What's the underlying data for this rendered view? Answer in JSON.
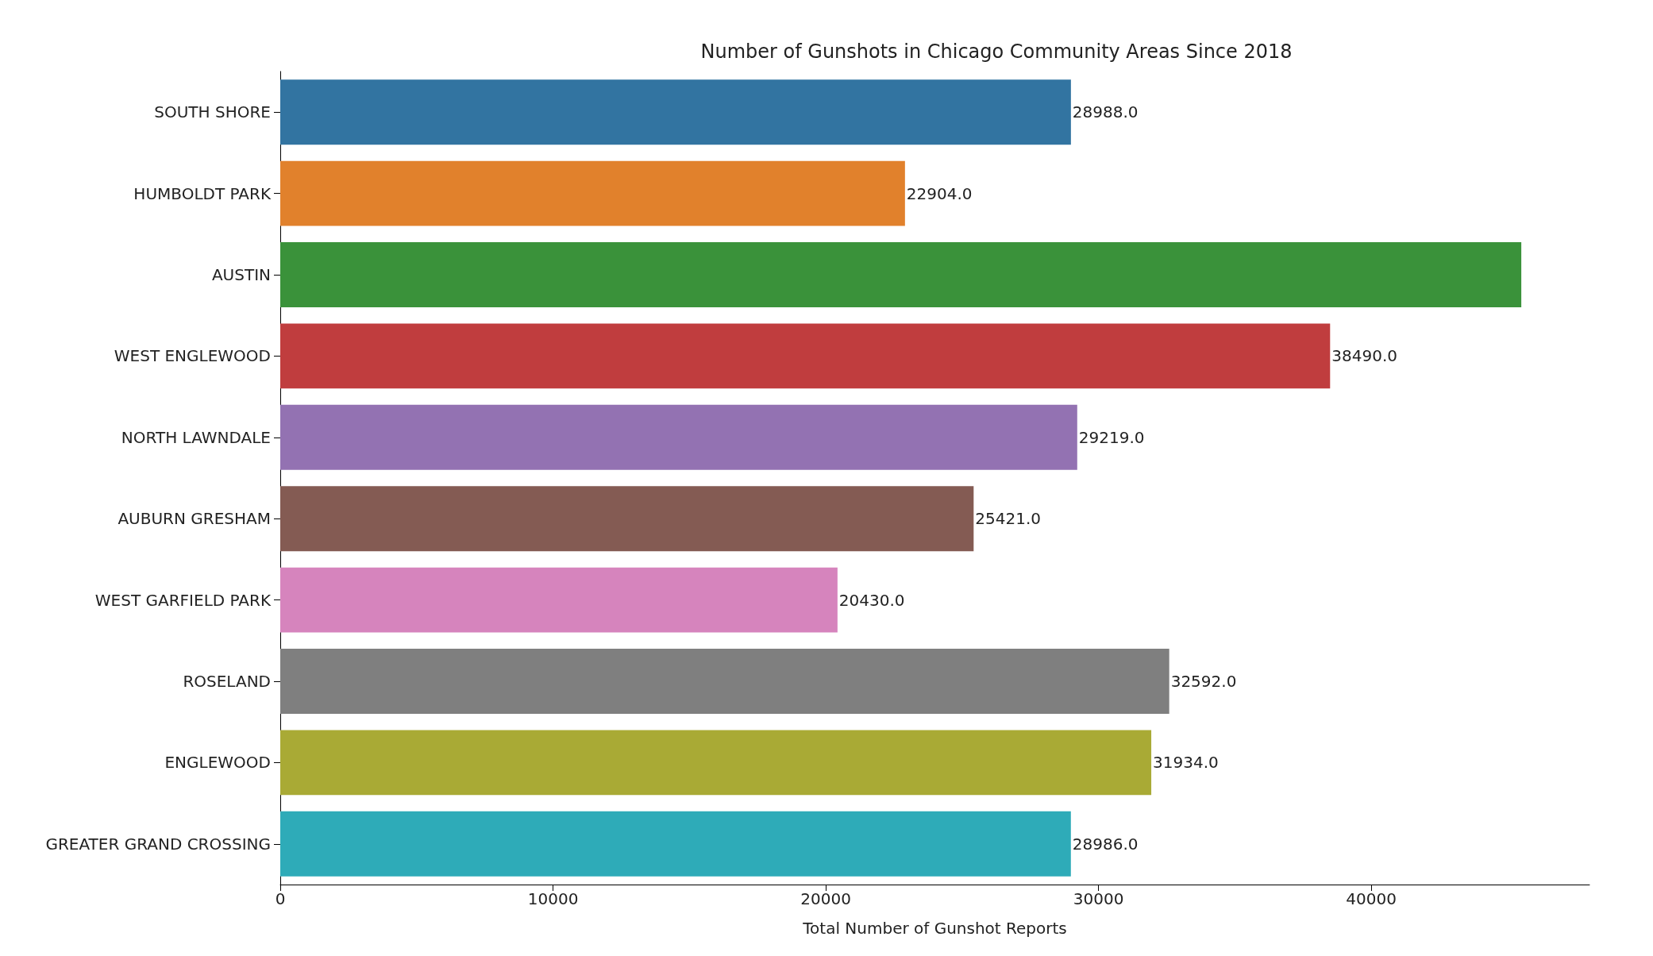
{
  "chart_data": {
    "type": "bar",
    "orientation": "horizontal",
    "title": "Number of Gunshots in Chicago Community Areas Since 2018",
    "xlabel": "Total Number of Gunshot Reports",
    "categories": [
      "SOUTH SHORE",
      "HUMBOLDT PARK",
      "AUSTIN",
      "WEST ENGLEWOOD",
      "NORTH LAWNDALE",
      "AUBURN GRESHAM",
      "WEST GARFIELD PARK",
      "ROSELAND",
      "ENGLEWOOD",
      "GREATER GRAND CROSSING"
    ],
    "values": [
      28988,
      22904,
      45500,
      38490,
      29219,
      25421,
      20430,
      32592,
      31934,
      28986
    ],
    "value_labels": [
      "28988.0",
      "22904.0",
      null,
      "38490.0",
      "29219.0",
      "25421.0",
      "20430.0",
      "32592.0",
      "31934.0",
      "28986.0"
    ],
    "colors": [
      "#3274a1",
      "#e1812c",
      "#3a923a",
      "#c03d3e",
      "#9372b2",
      "#845b53",
      "#d684bd",
      "#7f7f7f",
      "#a9aa35",
      "#2eabb8"
    ],
    "xlim": [
      0,
      48000
    ],
    "xticks": [
      0,
      10000,
      20000,
      30000,
      40000
    ],
    "grid": false
  }
}
